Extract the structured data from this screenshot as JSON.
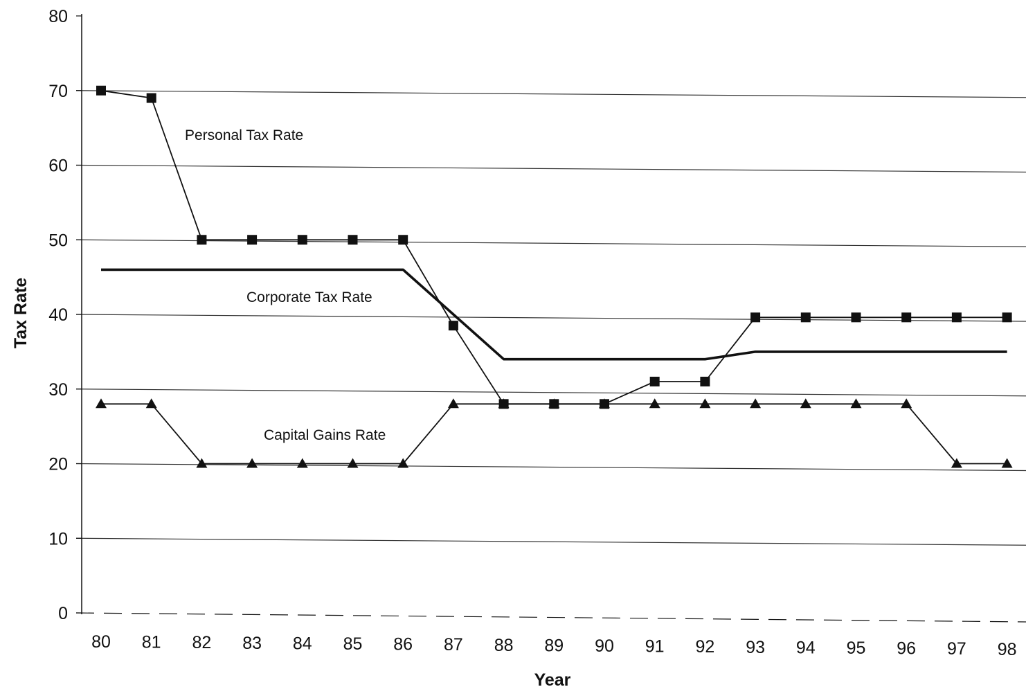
{
  "chart_data": {
    "type": "line",
    "title": "",
    "xlabel": "Year",
    "ylabel": "Tax Rate",
    "categories": [
      "80",
      "81",
      "82",
      "83",
      "84",
      "85",
      "86",
      "87",
      "88",
      "89",
      "90",
      "91",
      "92",
      "93",
      "94",
      "95",
      "96",
      "97",
      "98"
    ],
    "ylim": [
      0,
      80
    ],
    "y_ticks": [
      "0",
      "10",
      "20",
      "30",
      "40",
      "50",
      "60",
      "70",
      "80"
    ],
    "grid": true,
    "legend": "none",
    "series": [
      {
        "name": "Personal Tax Rate",
        "marker": "square",
        "values": [
          70,
          69,
          50,
          50,
          50,
          50,
          50,
          38.5,
          28,
          28,
          28,
          31,
          31,
          39.6,
          39.6,
          39.6,
          39.6,
          39.6,
          39.6
        ]
      },
      {
        "name": "Corporate Tax Rate",
        "marker": "none",
        "values": [
          46,
          46,
          46,
          46,
          46,
          46,
          46,
          40,
          34,
          34,
          34,
          34,
          34,
          35,
          35,
          35,
          35,
          35,
          35
        ]
      },
      {
        "name": "Capital Gains Rate",
        "marker": "triangle",
        "values": [
          28,
          28,
          20,
          20,
          20,
          20,
          20,
          28,
          28,
          28,
          28,
          28,
          28,
          28,
          28,
          28,
          28,
          20,
          20
        ]
      }
    ],
    "colors": {
      "lines": "#111111",
      "grid": "#333333"
    }
  }
}
